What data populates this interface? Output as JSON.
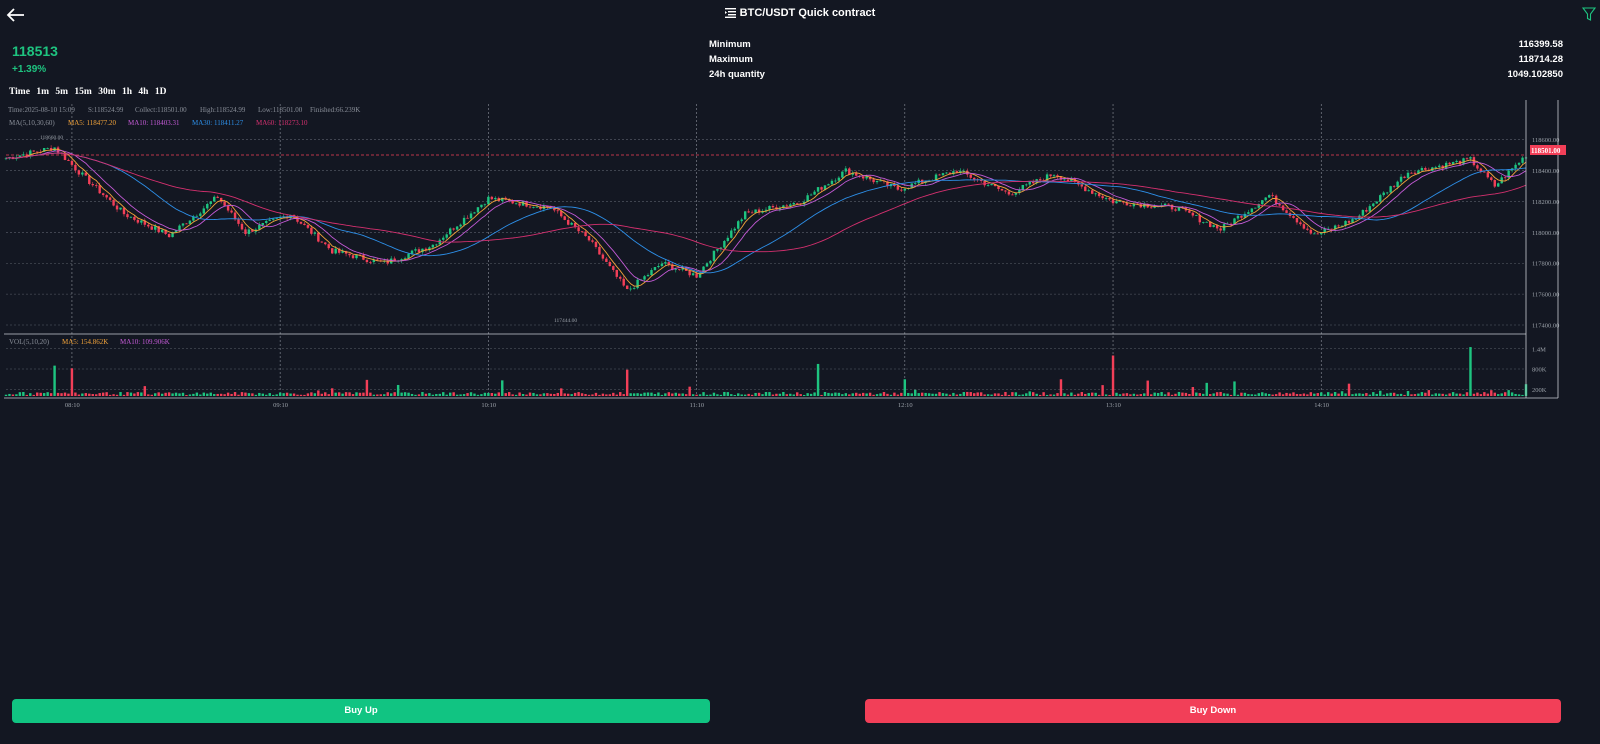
{
  "header": {
    "title": "BTC/USDT Quick contract",
    "back_icon": "arrow-left-icon",
    "title_icon": "menu-list-icon",
    "filter_icon": "filter-icon"
  },
  "ticker": {
    "price": "118513",
    "change": "+1.39%"
  },
  "stats": [
    {
      "label": "Minimum",
      "value": "116399.58"
    },
    {
      "label": "Maximum",
      "value": "118714.28"
    },
    {
      "label": "24h quantity",
      "value": "1049.102850"
    }
  ],
  "intervals": [
    "Time",
    "1m",
    "5m",
    "15m",
    "30m",
    "1h",
    "4h",
    "1D"
  ],
  "chart_info": {
    "time": "Time:2025-08-10 15:09",
    "open": "S:118524.99",
    "collect": "Collect:118501.00",
    "high": "High:118524.99",
    "low": "Low:118501.00",
    "finished": "Finished:66.239K"
  },
  "ma_legend": {
    "title": "MA(5,10,30,60)",
    "ma5": "MA5: 118477.20",
    "ma10": "MA10: 118403.31",
    "ma30": "MA30: 118411.27",
    "ma60": "MA60: 118273.10"
  },
  "vol_legend": {
    "title": "VOL(5,10,20)",
    "ma5": "MA5: 154.862K",
    "ma10": "MA10: 109.906K"
  },
  "current_price_tag": "118501.00",
  "high_marker": "118660.00",
  "low_marker": "117444.00",
  "colors": {
    "up": "#1ec480",
    "down": "#f23f58",
    "ma5": "#f2a33a",
    "ma10": "#c45ad6",
    "ma30": "#2d8fe8",
    "ma60": "#d5306f",
    "background": "#131722"
  },
  "chart_data": {
    "type": "candlestick",
    "title": "BTC/USDT",
    "price_axis_ticks": [
      "118600.00",
      "118400.00",
      "118200.00",
      "118000.00",
      "117800.00",
      "117600.00",
      "117400.00"
    ],
    "price_ylim": [
      117400,
      118650
    ],
    "volume_axis_ticks": [
      "1.4M",
      "800K",
      "200K"
    ],
    "volume_ylim": [
      0,
      1600000
    ],
    "time_axis_ticks": [
      "08:10",
      "09:10",
      "10:10",
      "11:10",
      "12:10",
      "13:10",
      "14:10"
    ],
    "x_range": [
      "07:51",
      "15:09"
    ],
    "close_path": [
      [
        "07:51",
        118480
      ],
      [
        "08:05",
        118550
      ],
      [
        "08:13",
        118370
      ],
      [
        "08:25",
        118120
      ],
      [
        "08:38",
        117980
      ],
      [
        "08:52",
        118230
      ],
      [
        "09:00",
        118000
      ],
      [
        "09:13",
        118120
      ],
      [
        "09:25",
        117880
      ],
      [
        "09:40",
        117800
      ],
      [
        "09:54",
        117920
      ],
      [
        "10:10",
        118220
      ],
      [
        "10:28",
        118160
      ],
      [
        "10:39",
        117950
      ],
      [
        "10:50",
        117620
      ],
      [
        "11:00",
        117800
      ],
      [
        "11:10",
        117720
      ],
      [
        "11:24",
        118120
      ],
      [
        "11:40",
        118200
      ],
      [
        "11:53",
        118400
      ],
      [
        "12:08",
        118280
      ],
      [
        "12:25",
        118400
      ],
      [
        "12:40",
        118250
      ],
      [
        "12:53",
        118380
      ],
      [
        "13:10",
        118200
      ],
      [
        "13:28",
        118160
      ],
      [
        "13:41",
        118020
      ],
      [
        "13:55",
        118240
      ],
      [
        "14:08",
        117980
      ],
      [
        "14:20",
        118090
      ],
      [
        "14:35",
        118390
      ],
      [
        "14:53",
        118470
      ],
      [
        "15:00",
        118300
      ],
      [
        "15:09",
        118501
      ]
    ],
    "volume_spikes": [
      {
        "time": "08:05",
        "volume": 900000
      },
      {
        "time": "08:10",
        "volume": 820000
      },
      {
        "time": "10:50",
        "volume": 780000
      },
      {
        "time": "11:45",
        "volume": 950000
      },
      {
        "time": "13:10",
        "volume": 1200000
      },
      {
        "time": "14:53",
        "volume": 1450000
      },
      {
        "time": "15:09",
        "volume": 350000
      }
    ]
  },
  "actions": {
    "buy_up": "Buy Up",
    "buy_down": "Buy Down"
  }
}
